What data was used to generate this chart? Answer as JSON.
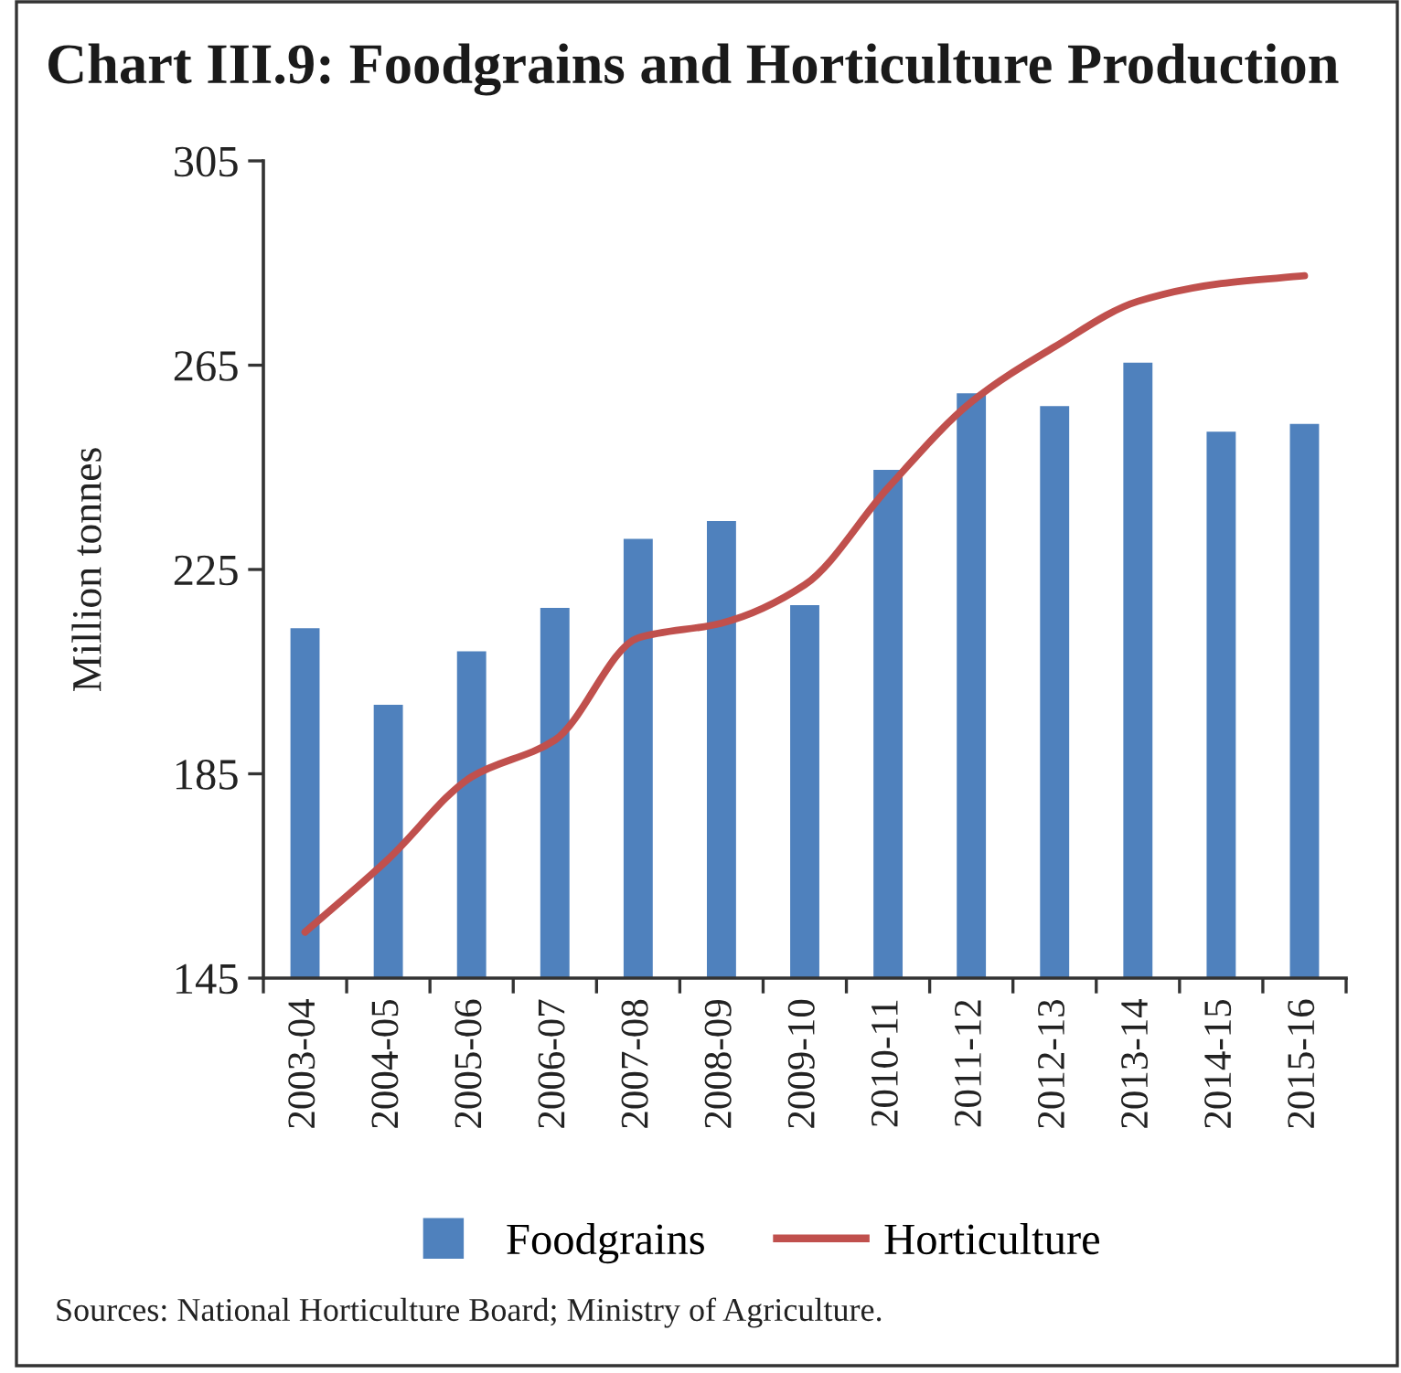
{
  "chart_data": {
    "type": "bar",
    "title": "Chart III.9: Foodgrains and Horticulture Production",
    "ylabel": "Million tonnes",
    "categories": [
      "2003-04",
      "2004-05",
      "2005-06",
      "2006-07",
      "2007-08",
      "2008-09",
      "2009-10",
      "2010-11",
      "2011-12",
      "2012-13",
      "2013-14",
      "2014-15",
      "2015-16"
    ],
    "series": [
      {
        "name": "Foodgrains",
        "color": "#4f81bd",
        "values": [
          213.5,
          198.5,
          209,
          217.5,
          231,
          234.5,
          218,
          244.5,
          259.5,
          257,
          265.5,
          252,
          253.5
        ]
      },
      {
        "name": "Horticulture",
        "type": "line",
        "color": "#c0504d",
        "values": [
          154,
          168.3,
          184.4,
          191.6,
          211.6,
          214.5,
          222,
          241,
          257.8,
          268.6,
          277.5,
          281,
          282.5
        ]
      }
    ],
    "ylim": [
      145,
      305
    ],
    "yticks": [
      145,
      185,
      225,
      265,
      305
    ],
    "grid": false,
    "legend": "bottom",
    "line_style": "solid",
    "annotations": [
      "Sources: National Horticulture Board; Ministry of Agriculture."
    ]
  }
}
